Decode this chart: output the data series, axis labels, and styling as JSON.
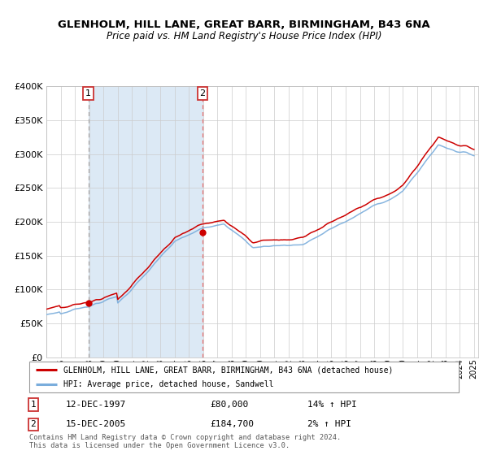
{
  "title1": "GLENHOLM, HILL LANE, GREAT BARR, BIRMINGHAM, B43 6NA",
  "title2": "Price paid vs. HM Land Registry's House Price Index (HPI)",
  "legend_line1": "GLENHOLM, HILL LANE, GREAT BARR, BIRMINGHAM, B43 6NA (detached house)",
  "legend_line2": "HPI: Average price, detached house, Sandwell",
  "annotation1_label": "1",
  "annotation1_date": "12-DEC-1997",
  "annotation1_price": "£80,000",
  "annotation1_hpi": "14% ↑ HPI",
  "annotation2_label": "2",
  "annotation2_date": "15-DEC-2005",
  "annotation2_price": "£184,700",
  "annotation2_hpi": "2% ↑ HPI",
  "footer": "Contains HM Land Registry data © Crown copyright and database right 2024.\nThis data is licensed under the Open Government Licence v3.0.",
  "purchase1_year": 1997.95,
  "purchase1_value": 80000,
  "purchase2_year": 2005.95,
  "purchase2_value": 184700,
  "hpi_color": "#7aaddc",
  "price_color": "#cc0000",
  "bg_shade_color": "#dce9f5",
  "grid_color": "#cccccc",
  "dashed_line_color": "#e87070",
  "ylim": [
    0,
    400000
  ],
  "yticks": [
    0,
    50000,
    100000,
    150000,
    200000,
    250000,
    300000,
    350000,
    400000
  ],
  "xlim_start": 1995,
  "xlim_end": 2025.3
}
